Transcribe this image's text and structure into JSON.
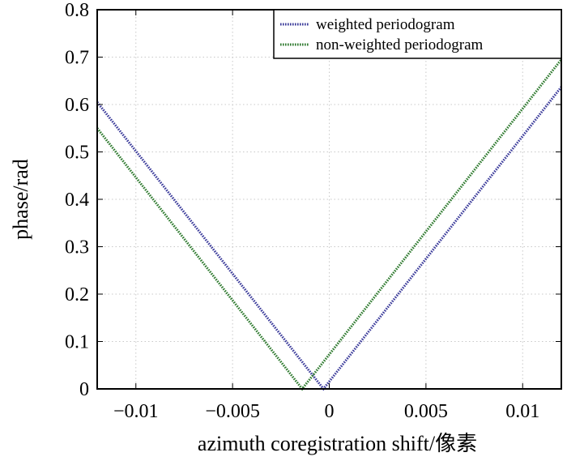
{
  "chart_data": {
    "type": "line",
    "title": "",
    "xlabel": "azimuth coregistration shift/像素",
    "ylabel": "phase/rad",
    "xlim": [
      -0.012,
      0.012
    ],
    "ylim": [
      0,
      0.8
    ],
    "xticks": [
      -0.01,
      -0.005,
      0,
      0.005,
      0.01
    ],
    "xtick_labels": [
      "−0.01",
      "−0.005",
      "0",
      "0.005",
      "0.01"
    ],
    "yticks": [
      0,
      0.1,
      0.2,
      0.3,
      0.4,
      0.5,
      0.6,
      0.7,
      0.8
    ],
    "ytick_labels": [
      "0",
      "0.1",
      "0.2",
      "0.3",
      "0.4",
      "0.5",
      "0.6",
      "0.7",
      "0.8"
    ],
    "grid": true,
    "legend_position": "top-right",
    "series": [
      {
        "name": "weighted periodogram",
        "color": "#3a3a9a",
        "x": [
          -0.012,
          -0.0003,
          0.012
        ],
        "y": [
          0.605,
          0.0,
          0.637
        ]
      },
      {
        "name": "non-weighted periodogram",
        "color": "#2e7a2e",
        "x": [
          -0.012,
          -0.0014,
          0.012
        ],
        "y": [
          0.55,
          0.0,
          0.695
        ]
      }
    ]
  }
}
